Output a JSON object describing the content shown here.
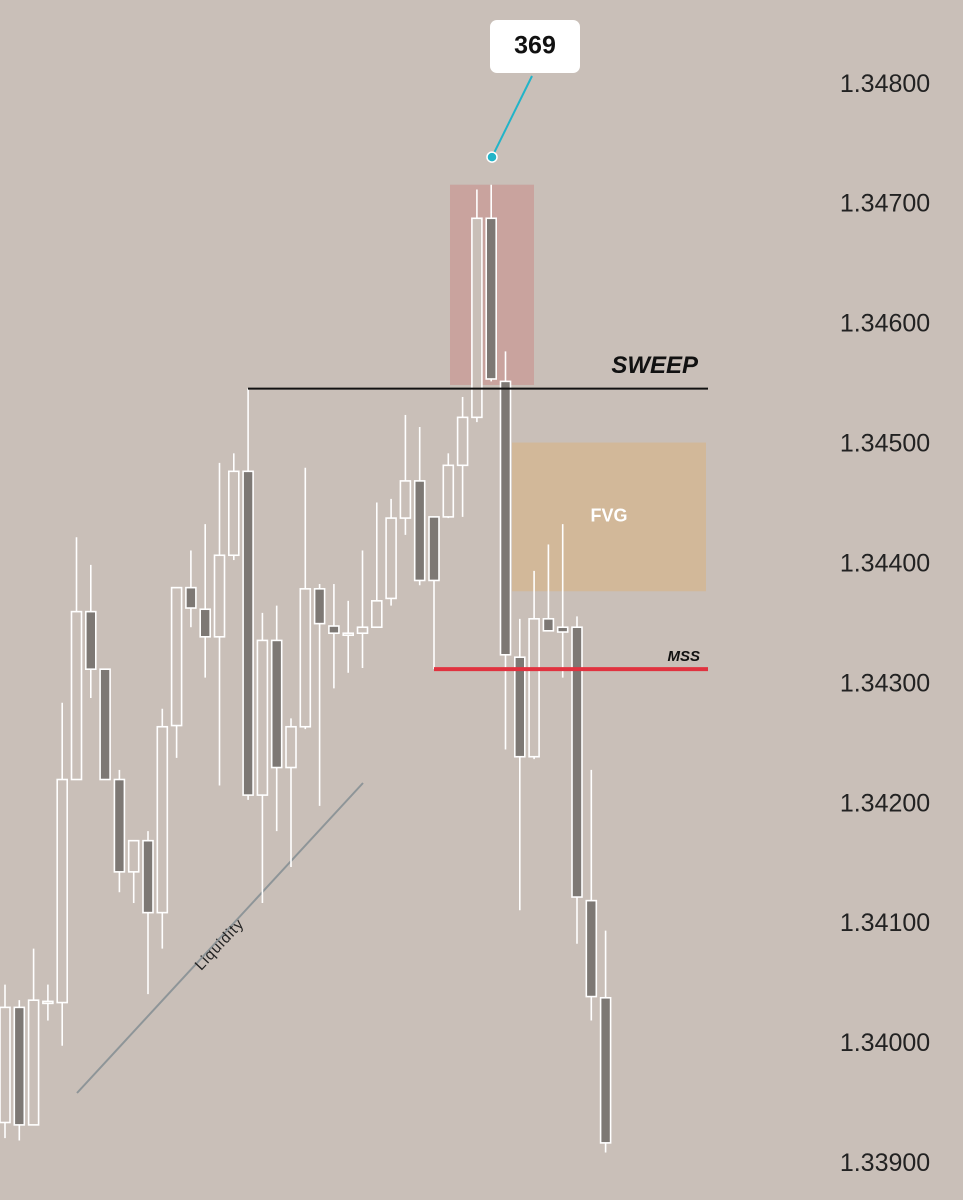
{
  "chart_data": {
    "type": "candlestick",
    "ylim": [
      1.3392,
      1.34851
    ],
    "yticks": [
      {
        "value": 1.348,
        "label": "1.34800"
      },
      {
        "value": 1.347,
        "label": "1.34700"
      },
      {
        "value": 1.346,
        "label": "1.34600"
      },
      {
        "value": 1.345,
        "label": "1.34500"
      },
      {
        "value": 1.344,
        "label": "1.34400"
      },
      {
        "value": 1.343,
        "label": "1.34300"
      },
      {
        "value": 1.342,
        "label": "1.34200"
      },
      {
        "value": 1.341,
        "label": "1.34100"
      },
      {
        "value": 1.34,
        "label": "1.34000"
      },
      {
        "value": 1.339,
        "label": "1.33900"
      }
    ],
    "up_color": "#c9bfb8",
    "down_color": "#7d7874",
    "wick_color": "#ffffff",
    "open": [
      1.33935,
      1.34031,
      1.33933,
      1.34035,
      1.34035,
      1.34221,
      1.34361,
      1.34313,
      1.34221,
      1.34144,
      1.3417,
      1.3411,
      1.34266,
      1.34381,
      1.34363,
      1.3434,
      1.34408,
      1.34478,
      1.34208,
      1.34337,
      1.34231,
      1.34265,
      1.3438,
      1.34349,
      1.34343,
      1.34343,
      1.34348,
      1.34372,
      1.34439,
      1.3447,
      1.3444,
      1.3444,
      1.34483,
      1.34523,
      1.34689,
      1.34553,
      1.34323,
      1.3424,
      1.34355,
      1.34348,
      1.34348,
      1.3412,
      1.34039
    ],
    "high": [
      1.3405,
      1.34037,
      1.3408,
      1.3405,
      1.34285,
      1.34423,
      1.344,
      1.34313,
      1.34229,
      1.3417,
      1.34178,
      1.3428,
      1.34381,
      1.34412,
      1.34434,
      1.34485,
      1.34493,
      1.34547,
      1.3436,
      1.34366,
      1.34272,
      1.34481,
      1.34384,
      1.34384,
      1.3437,
      1.34412,
      1.34452,
      1.34455,
      1.34525,
      1.34515,
      1.3444,
      1.34493,
      1.3454,
      1.34713,
      1.34717,
      1.34578,
      1.34355,
      1.34395,
      1.34417,
      1.34434,
      1.34357,
      1.34229,
      1.34095
    ],
    "low": [
      1.33922,
      1.3392,
      1.33933,
      1.3402,
      1.33999,
      1.34221,
      1.34289,
      1.34221,
      1.34127,
      1.34118,
      1.34042,
      1.3408,
      1.34239,
      1.34348,
      1.34306,
      1.34216,
      1.34404,
      1.34204,
      1.34118,
      1.34178,
      1.34148,
      1.34263,
      1.34199,
      1.34297,
      1.3431,
      1.34314,
      1.34348,
      1.34366,
      1.34425,
      1.34383,
      1.34313,
      1.34439,
      1.3444,
      1.34519,
      1.34553,
      1.34246,
      1.34112,
      1.34238,
      1.34345,
      1.34306,
      1.34084,
      1.3402,
      1.3391
    ],
    "close": [
      1.34031,
      1.33933,
      1.34037,
      1.34036,
      1.34221,
      1.34361,
      1.34313,
      1.34221,
      1.34144,
      1.3417,
      1.3411,
      1.34265,
      1.34381,
      1.34364,
      1.3434,
      1.34408,
      1.34478,
      1.34208,
      1.34337,
      1.34231,
      1.34265,
      1.3438,
      1.34351,
      1.34343,
      1.34343,
      1.34348,
      1.3437,
      1.34439,
      1.3447,
      1.34387,
      1.34387,
      1.34483,
      1.34523,
      1.34689,
      1.34555,
      1.34325,
      1.3424,
      1.34355,
      1.34345,
      1.34344,
      1.34123,
      1.3404,
      1.33918
    ],
    "zones": [
      {
        "ylim": [
          1.3455,
          1.34717
        ],
        "color": "#c99d99"
      },
      {
        "label": "FVG",
        "ylim": [
          1.34378,
          1.34502
        ],
        "color": "#d3b693"
      }
    ],
    "levels": [
      {
        "label": "SWEEP",
        "value": 1.34547,
        "color": "#111111"
      },
      {
        "label": "MSS",
        "value": 1.34313,
        "color": "#e0323f"
      }
    ],
    "callout": {
      "label": "369",
      "value": 1.3474,
      "color": "#22b4c8"
    },
    "trendline_label": "Liquidity"
  }
}
